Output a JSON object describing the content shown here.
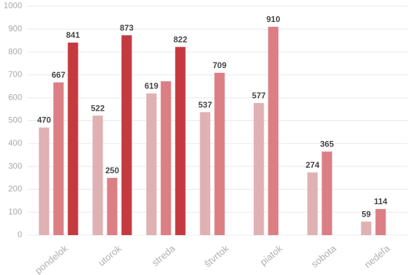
{
  "chart_data": {
    "type": "bar",
    "categories": [
      "pondelok",
      "utorok",
      "streda",
      "štvrtok",
      "piatok",
      "sobota",
      "nedeľa"
    ],
    "series": [
      {
        "color": "#dfb1b3",
        "values": [
          470,
          522,
          619,
          537,
          577,
          274,
          59
        ]
      },
      {
        "color": "#db7f84",
        "values": [
          667,
          250,
          672,
          709,
          910,
          365,
          114
        ],
        "value_labels": [
          "667",
          "250",
          null,
          "709",
          "910",
          "365",
          "114"
        ]
      },
      {
        "color": "#c43a40",
        "values": [
          841,
          873,
          822,
          null,
          null,
          null,
          null
        ]
      }
    ],
    "ylim": [
      0,
      1000
    ],
    "yticks": [
      0,
      100,
      200,
      300,
      400,
      500,
      600,
      700,
      800,
      900,
      1000
    ],
    "grid": true
  }
}
